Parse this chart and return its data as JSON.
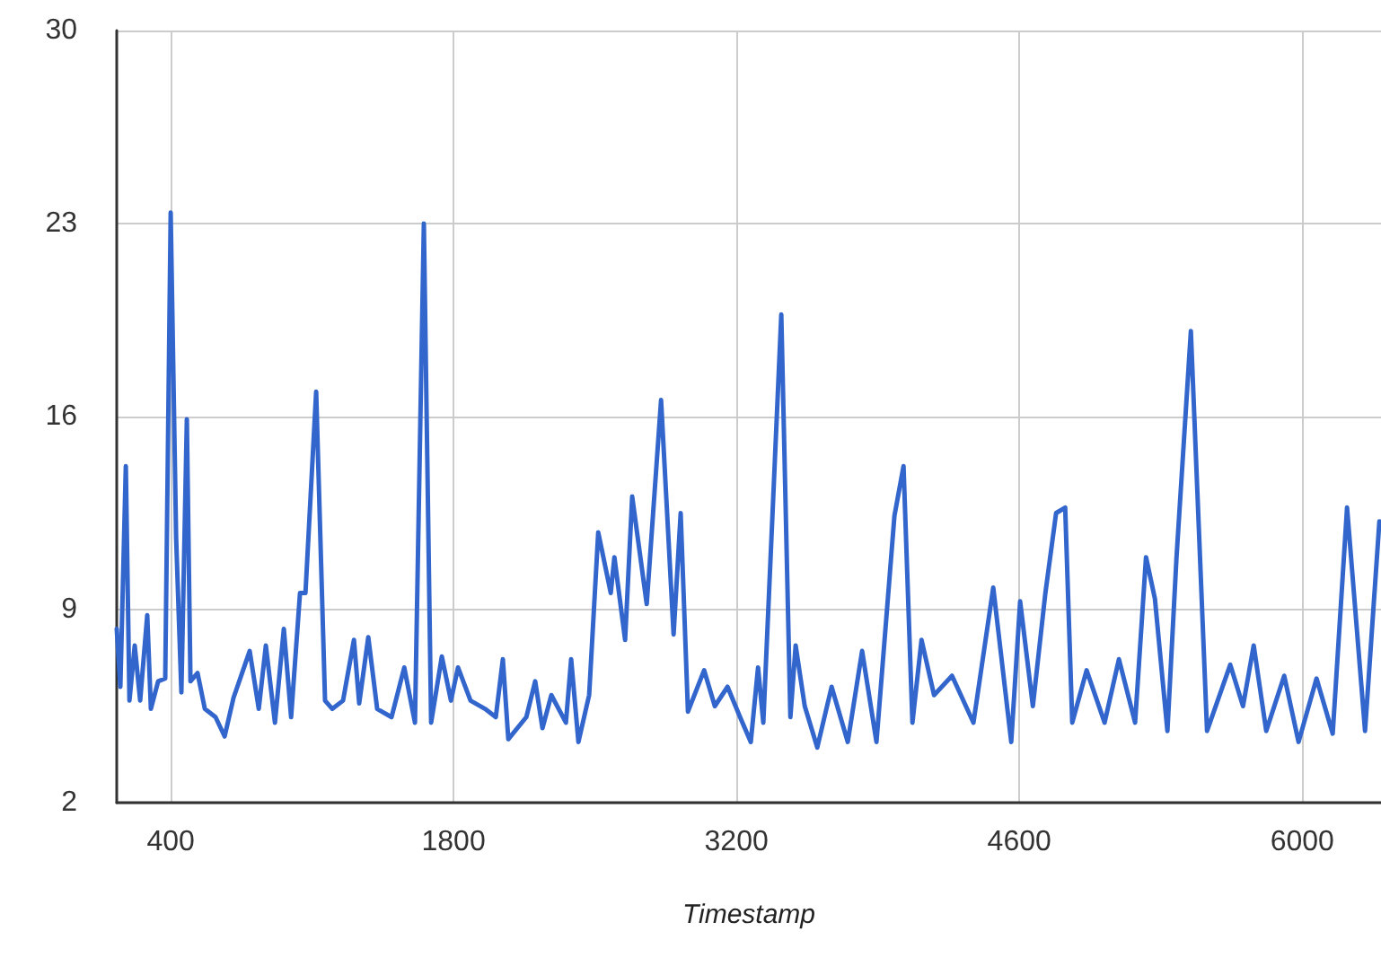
{
  "chart_data": {
    "type": "line",
    "xlabel": "Timestamp",
    "xlim": [
      133,
      6390
    ],
    "xticks": [
      400,
      1800,
      3200,
      4600,
      6000
    ],
    "ylim": [
      2,
      30
    ],
    "yticks": [
      2,
      9,
      16,
      23,
      30
    ],
    "grid": true,
    "marker": "none",
    "line_style": "solid",
    "x": [
      133,
      151,
      178,
      196,
      222,
      249,
      284,
      302,
      338,
      373,
      400,
      427,
      453,
      480,
      498,
      533,
      569,
      622,
      667,
      711,
      791,
      836,
      871,
      916,
      960,
      996,
      1040,
      1067,
      1120,
      1164,
      1200,
      1253,
      1307,
      1333,
      1378,
      1422,
      1493,
      1556,
      1609,
      1653,
      1689,
      1742,
      1787,
      1822,
      1884,
      1956,
      2009,
      2044,
      2071,
      2160,
      2204,
      2240,
      2284,
      2356,
      2382,
      2418,
      2471,
      2516,
      2578,
      2596,
      2649,
      2684,
      2756,
      2827,
      2889,
      2924,
      2960,
      3040,
      3093,
      3156,
      3218,
      3271,
      3307,
      3333,
      3422,
      3467,
      3493,
      3538,
      3600,
      3671,
      3751,
      3822,
      3893,
      3982,
      4027,
      4071,
      4116,
      4178,
      4267,
      4373,
      4471,
      4560,
      4604,
      4667,
      4729,
      4782,
      4827,
      4862,
      4933,
      5022,
      5093,
      5173,
      5227,
      5271,
      5333,
      5378,
      5449,
      5529,
      5644,
      5707,
      5760,
      5822,
      5911,
      5982,
      6071,
      6151,
      6222,
      6311,
      6382
    ],
    "series": [
      {
        "color": "#3366cc",
        "values": [
          8.3,
          6.2,
          14.2,
          5.7,
          7.7,
          5.7,
          8.8,
          5.4,
          6.4,
          6.5,
          23.4,
          11.6,
          6.0,
          15.9,
          6.4,
          6.7,
          5.4,
          5.1,
          4.4,
          5.8,
          7.5,
          5.4,
          7.7,
          4.9,
          8.3,
          5.1,
          9.6,
          9.6,
          16.9,
          5.7,
          5.4,
          5.7,
          7.9,
          5.6,
          8.0,
          5.4,
          5.1,
          6.9,
          4.9,
          23.0,
          4.9,
          7.3,
          5.7,
          6.9,
          5.7,
          5.4,
          5.1,
          7.2,
          4.3,
          5.1,
          6.4,
          4.7,
          5.9,
          4.9,
          7.2,
          4.2,
          5.9,
          11.8,
          9.6,
          10.9,
          7.9,
          13.1,
          9.2,
          16.6,
          8.1,
          12.5,
          5.3,
          6.8,
          5.5,
          6.2,
          5.1,
          4.2,
          6.9,
          4.9,
          19.7,
          5.1,
          7.7,
          5.5,
          4.0,
          6.2,
          4.2,
          7.5,
          4.2,
          12.4,
          14.2,
          4.9,
          7.9,
          5.9,
          6.6,
          4.9,
          9.8,
          4.2,
          9.3,
          5.5,
          9.6,
          12.5,
          12.7,
          4.9,
          6.8,
          4.9,
          7.2,
          4.9,
          10.9,
          9.4,
          4.6,
          10.9,
          19.1,
          4.6,
          7.0,
          5.5,
          7.7,
          4.6,
          6.6,
          4.2,
          6.5,
          4.5,
          12.7,
          4.6,
          12.2
        ]
      }
    ]
  }
}
